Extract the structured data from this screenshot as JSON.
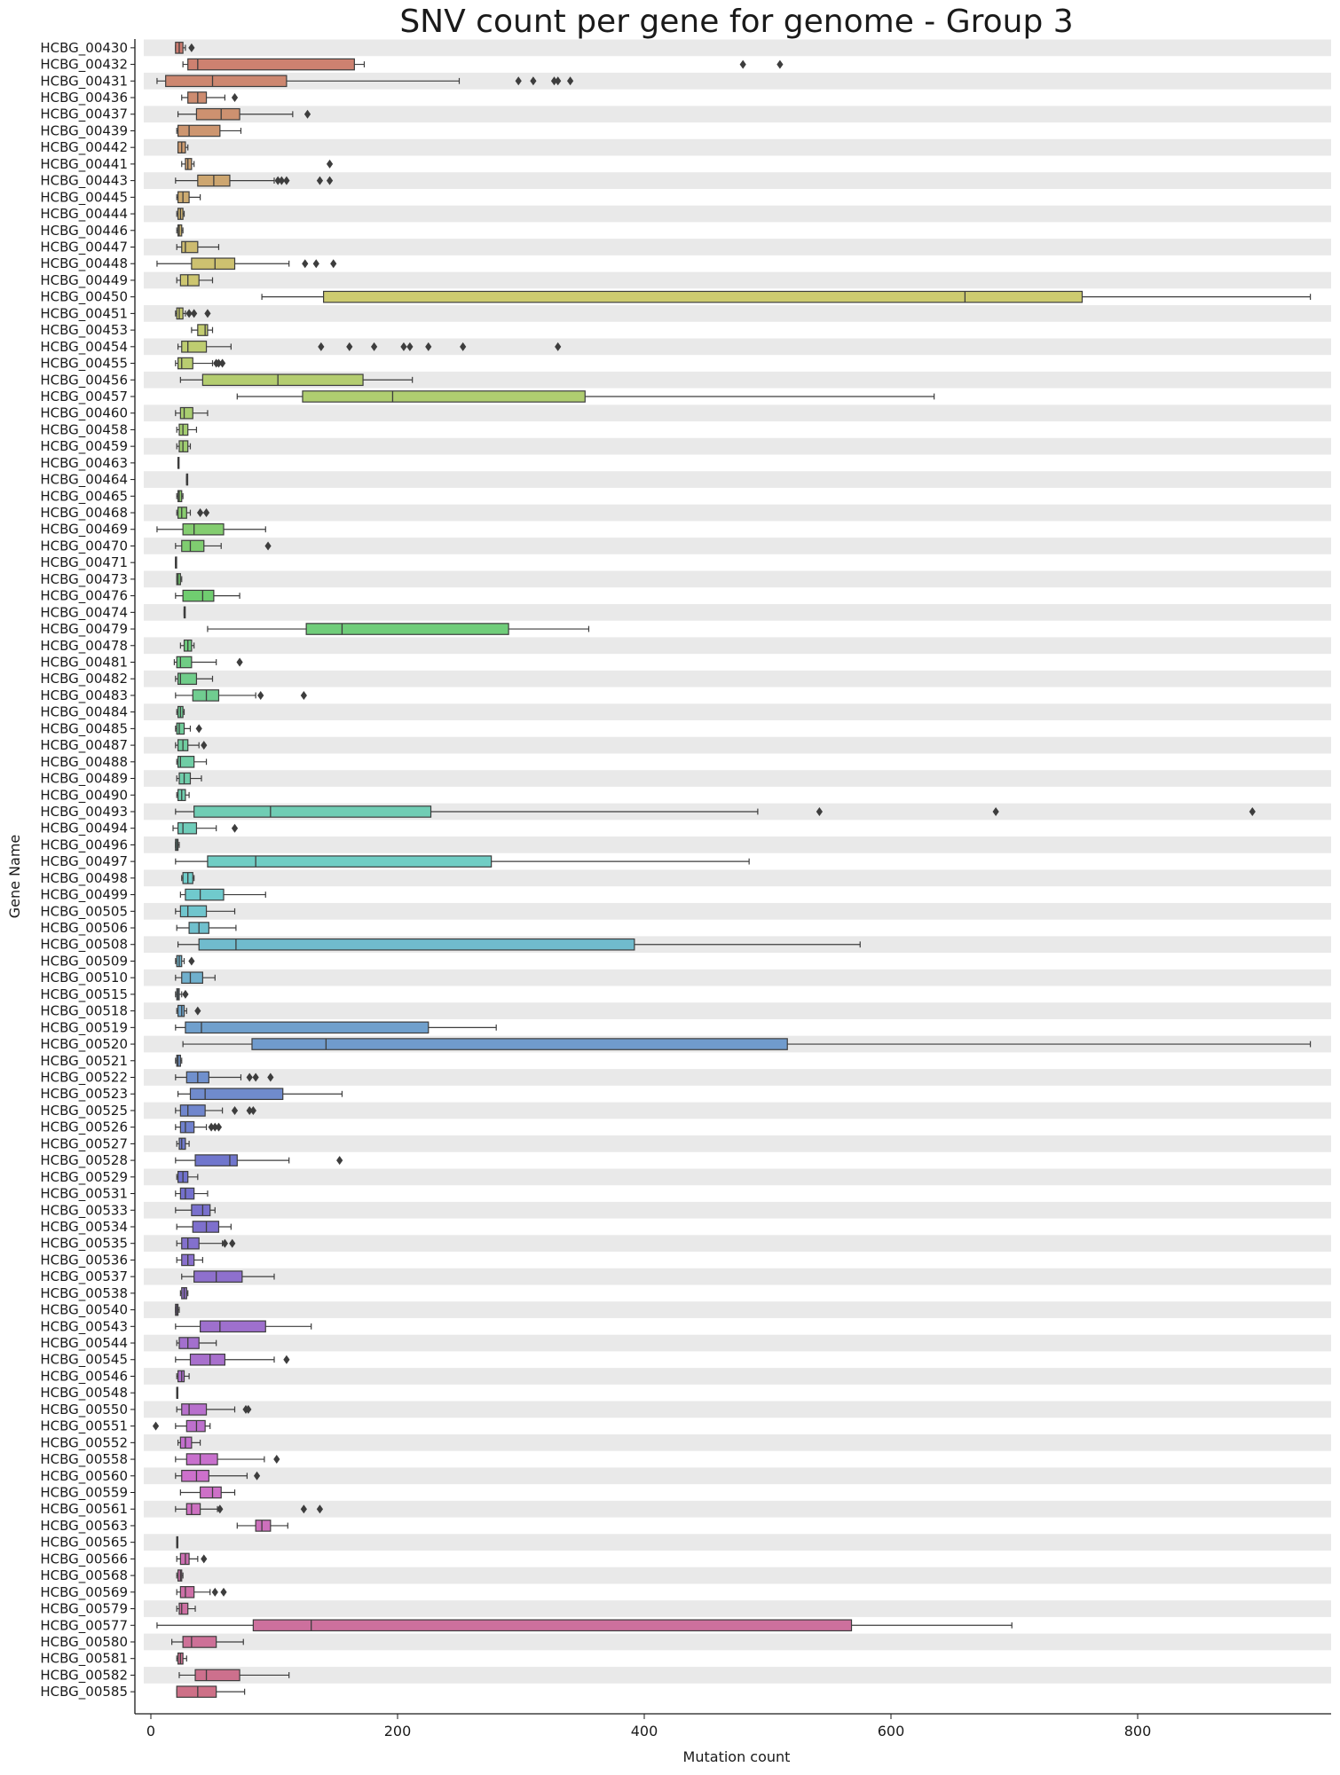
{
  "chart_data": {
    "type": "boxplot",
    "orientation": "horizontal",
    "title": "SNV count per gene for genome - Group 3",
    "xlabel": "Mutation count",
    "ylabel": "Gene Name",
    "xlim": [
      -5,
      950
    ],
    "xticks": [
      0,
      200,
      400,
      600,
      800
    ],
    "row_shading": "alternating light gray bands",
    "legend": "none",
    "genes": [
      {
        "name": "HCBG_00430",
        "min": 20,
        "q1": 20,
        "median": 23,
        "q3": 26,
        "max": 28,
        "outliers": [
          33
        ]
      },
      {
        "name": "HCBG_00432",
        "min": 26,
        "q1": 30,
        "median": 38,
        "q3": 165,
        "max": 173,
        "outliers": [
          480,
          510
        ]
      },
      {
        "name": "HCBG_00431",
        "min": 5,
        "q1": 12,
        "median": 50,
        "q3": 110,
        "max": 250,
        "outliers": [
          298,
          310,
          327,
          330,
          340
        ]
      },
      {
        "name": "HCBG_00436",
        "min": 25,
        "q1": 30,
        "median": 38,
        "q3": 45,
        "max": 60,
        "outliers": [
          68
        ]
      },
      {
        "name": "HCBG_00437",
        "min": 22,
        "q1": 37,
        "median": 57,
        "q3": 72,
        "max": 115,
        "outliers": [
          127
        ]
      },
      {
        "name": "HCBG_00439",
        "min": 21,
        "q1": 22,
        "median": 31,
        "q3": 56,
        "max": 73,
        "outliers": []
      },
      {
        "name": "HCBG_00442",
        "min": 22,
        "q1": 22,
        "median": 25,
        "q3": 28,
        "max": 30,
        "outliers": []
      },
      {
        "name": "HCBG_00441",
        "min": 25,
        "q1": 28,
        "median": 30,
        "q3": 33,
        "max": 35,
        "outliers": [
          145
        ]
      },
      {
        "name": "HCBG_00443",
        "min": 20,
        "q1": 38,
        "median": 51,
        "q3": 64,
        "max": 100,
        "outliers": [
          103,
          106,
          110,
          137,
          145
        ]
      },
      {
        "name": "HCBG_00445",
        "min": 21,
        "q1": 22,
        "median": 26,
        "q3": 31,
        "max": 40,
        "outliers": []
      },
      {
        "name": "HCBG_00444",
        "min": 21,
        "q1": 22,
        "median": 24,
        "q3": 26,
        "max": 27,
        "outliers": []
      },
      {
        "name": "HCBG_00446",
        "min": 21,
        "q1": 22,
        "median": 23,
        "q3": 25,
        "max": 26,
        "outliers": []
      },
      {
        "name": "HCBG_00447",
        "min": 21,
        "q1": 25,
        "median": 28,
        "q3": 38,
        "max": 55,
        "outliers": []
      },
      {
        "name": "HCBG_00448",
        "min": 5,
        "q1": 33,
        "median": 52,
        "q3": 68,
        "max": 112,
        "outliers": [
          125,
          134,
          148
        ]
      },
      {
        "name": "HCBG_00449",
        "min": 21,
        "q1": 24,
        "median": 30,
        "q3": 39,
        "max": 50,
        "outliers": []
      },
      {
        "name": "HCBG_00450",
        "min": 90,
        "q1": 140,
        "median": 660,
        "q3": 755,
        "max": 940,
        "outliers": []
      },
      {
        "name": "HCBG_00451",
        "min": 20,
        "q1": 21,
        "median": 23,
        "q3": 26,
        "max": 28,
        "outliers": [
          31,
          35,
          46
        ]
      },
      {
        "name": "HCBG_00453",
        "min": 33,
        "q1": 38,
        "median": 44,
        "q3": 46,
        "max": 50,
        "outliers": []
      },
      {
        "name": "HCBG_00454",
        "min": 22,
        "q1": 25,
        "median": 30,
        "q3": 45,
        "max": 65,
        "outliers": [
          138,
          161,
          181,
          205,
          210,
          225,
          253,
          330
        ]
      },
      {
        "name": "HCBG_00455",
        "min": 20,
        "q1": 22,
        "median": 25,
        "q3": 34,
        "max": 50,
        "outliers": [
          53,
          55,
          58
        ]
      },
      {
        "name": "HCBG_00456",
        "min": 24,
        "q1": 42,
        "median": 103,
        "q3": 172,
        "max": 212,
        "outliers": []
      },
      {
        "name": "HCBG_00457",
        "min": 70,
        "q1": 123,
        "median": 196,
        "q3": 352,
        "max": 635,
        "outliers": []
      },
      {
        "name": "HCBG_00460",
        "min": 20,
        "q1": 24,
        "median": 27,
        "q3": 34,
        "max": 46,
        "outliers": []
      },
      {
        "name": "HCBG_00458",
        "min": 21,
        "q1": 23,
        "median": 26,
        "q3": 30,
        "max": 37,
        "outliers": []
      },
      {
        "name": "HCBG_00459",
        "min": 21,
        "q1": 23,
        "median": 26,
        "q3": 30,
        "max": 32,
        "outliers": []
      },
      {
        "name": "HCBG_00463",
        "min": 22,
        "q1": 22,
        "median": 22,
        "q3": 22,
        "max": 22,
        "outliers": []
      },
      {
        "name": "HCBG_00464",
        "min": 29,
        "q1": 29,
        "median": 29,
        "q3": 29,
        "max": 29,
        "outliers": []
      },
      {
        "name": "HCBG_00465",
        "min": 21,
        "q1": 22,
        "median": 23,
        "q3": 25,
        "max": 26,
        "outliers": []
      },
      {
        "name": "HCBG_00468",
        "min": 21,
        "q1": 22,
        "median": 25,
        "q3": 29,
        "max": 32,
        "outliers": [
          40,
          45
        ]
      },
      {
        "name": "HCBG_00469",
        "min": 5,
        "q1": 26,
        "median": 35,
        "q3": 59,
        "max": 93,
        "outliers": []
      },
      {
        "name": "HCBG_00470",
        "min": 20,
        "q1": 25,
        "median": 32,
        "q3": 43,
        "max": 57,
        "outliers": [
          95
        ]
      },
      {
        "name": "HCBG_00471",
        "min": 20,
        "q1": 20,
        "median": 20,
        "q3": 20,
        "max": 20,
        "outliers": []
      },
      {
        "name": "HCBG_00473",
        "min": 21,
        "q1": 21,
        "median": 22,
        "q3": 24,
        "max": 25,
        "outliers": []
      },
      {
        "name": "HCBG_00476",
        "min": 20,
        "q1": 26,
        "median": 42,
        "q3": 51,
        "max": 72,
        "outliers": []
      },
      {
        "name": "HCBG_00474",
        "min": 27,
        "q1": 27,
        "median": 27,
        "q3": 27,
        "max": 27,
        "outliers": []
      },
      {
        "name": "HCBG_00479",
        "min": 46,
        "q1": 126,
        "median": 155,
        "q3": 290,
        "max": 355,
        "outliers": []
      },
      {
        "name": "HCBG_00478",
        "min": 24,
        "q1": 27,
        "median": 30,
        "q3": 33,
        "max": 35,
        "outliers": []
      },
      {
        "name": "HCBG_00481",
        "min": 19,
        "q1": 21,
        "median": 24,
        "q3": 33,
        "max": 53,
        "outliers": [
          72
        ]
      },
      {
        "name": "HCBG_00482",
        "min": 20,
        "q1": 22,
        "median": 24,
        "q3": 37,
        "max": 50,
        "outliers": []
      },
      {
        "name": "HCBG_00483",
        "min": 20,
        "q1": 34,
        "median": 45,
        "q3": 55,
        "max": 85,
        "outliers": [
          89,
          124
        ]
      },
      {
        "name": "HCBG_00484",
        "min": 21,
        "q1": 22,
        "median": 24,
        "q3": 26,
        "max": 27,
        "outliers": []
      },
      {
        "name": "HCBG_00485",
        "min": 20,
        "q1": 21,
        "median": 23,
        "q3": 27,
        "max": 32,
        "outliers": [
          39
        ]
      },
      {
        "name": "HCBG_00487",
        "min": 20,
        "q1": 22,
        "median": 26,
        "q3": 30,
        "max": 39,
        "outliers": [
          43
        ]
      },
      {
        "name": "HCBG_00488",
        "min": 21,
        "q1": 22,
        "median": 24,
        "q3": 35,
        "max": 45,
        "outliers": []
      },
      {
        "name": "HCBG_00489",
        "min": 21,
        "q1": 23,
        "median": 27,
        "q3": 32,
        "max": 41,
        "outliers": []
      },
      {
        "name": "HCBG_00490",
        "min": 21,
        "q1": 22,
        "median": 25,
        "q3": 28,
        "max": 31,
        "outliers": []
      },
      {
        "name": "HCBG_00493",
        "min": 20,
        "q1": 35,
        "median": 97,
        "q3": 227,
        "max": 492,
        "outliers": [
          542,
          685,
          893
        ]
      },
      {
        "name": "HCBG_00494",
        "min": 18,
        "q1": 22,
        "median": 26,
        "q3": 37,
        "max": 53,
        "outliers": [
          68
        ]
      },
      {
        "name": "HCBG_00496",
        "min": 20,
        "q1": 20,
        "median": 21,
        "q3": 22,
        "max": 23,
        "outliers": []
      },
      {
        "name": "HCBG_00497",
        "min": 20,
        "q1": 46,
        "median": 85,
        "q3": 276,
        "max": 485,
        "outliers": []
      },
      {
        "name": "HCBG_00498",
        "min": 25,
        "q1": 26,
        "median": 30,
        "q3": 34,
        "max": 35,
        "outliers": []
      },
      {
        "name": "HCBG_00499",
        "min": 24,
        "q1": 28,
        "median": 40,
        "q3": 59,
        "max": 93,
        "outliers": []
      },
      {
        "name": "HCBG_00505",
        "min": 20,
        "q1": 24,
        "median": 30,
        "q3": 45,
        "max": 68,
        "outliers": []
      },
      {
        "name": "HCBG_00506",
        "min": 21,
        "q1": 31,
        "median": 39,
        "q3": 47,
        "max": 69,
        "outliers": []
      },
      {
        "name": "HCBG_00508",
        "min": 22,
        "q1": 39,
        "median": 69,
        "q3": 392,
        "max": 575,
        "outliers": []
      },
      {
        "name": "HCBG_00509",
        "min": 20,
        "q1": 21,
        "median": 23,
        "q3": 25,
        "max": 27,
        "outliers": [
          33
        ]
      },
      {
        "name": "HCBG_00510",
        "min": 20,
        "q1": 25,
        "median": 32,
        "q3": 42,
        "max": 52,
        "outliers": []
      },
      {
        "name": "HCBG_00515",
        "min": 20,
        "q1": 21,
        "median": 22,
        "q3": 23,
        "max": 25,
        "outliers": [
          28
        ]
      },
      {
        "name": "HCBG_00518",
        "min": 21,
        "q1": 22,
        "median": 25,
        "q3": 27,
        "max": 29,
        "outliers": [
          38
        ]
      },
      {
        "name": "HCBG_00519",
        "min": 20,
        "q1": 28,
        "median": 41,
        "q3": 225,
        "max": 280,
        "outliers": []
      },
      {
        "name": "HCBG_00520",
        "min": 26,
        "q1": 82,
        "median": 142,
        "q3": 516,
        "max": 940,
        "outliers": []
      },
      {
        "name": "HCBG_00521",
        "min": 20,
        "q1": 21,
        "median": 22,
        "q3": 24,
        "max": 25,
        "outliers": []
      },
      {
        "name": "HCBG_00522",
        "min": 20,
        "q1": 29,
        "median": 38,
        "q3": 47,
        "max": 73,
        "outliers": [
          80,
          85,
          97
        ]
      },
      {
        "name": "HCBG_00523",
        "min": 22,
        "q1": 32,
        "median": 44,
        "q3": 107,
        "max": 155,
        "outliers": []
      },
      {
        "name": "HCBG_00525",
        "min": 20,
        "q1": 24,
        "median": 30,
        "q3": 44,
        "max": 58,
        "outliers": [
          68,
          80,
          83
        ]
      },
      {
        "name": "HCBG_00526",
        "min": 20,
        "q1": 24,
        "median": 28,
        "q3": 35,
        "max": 45,
        "outliers": [
          49,
          52,
          55
        ]
      },
      {
        "name": "HCBG_00527",
        "min": 21,
        "q1": 23,
        "median": 25,
        "q3": 28,
        "max": 31,
        "outliers": []
      },
      {
        "name": "HCBG_00528",
        "min": 20,
        "q1": 36,
        "median": 64,
        "q3": 70,
        "max": 112,
        "outliers": [
          153
        ]
      },
      {
        "name": "HCBG_00529",
        "min": 21,
        "q1": 22,
        "median": 26,
        "q3": 30,
        "max": 38,
        "outliers": []
      },
      {
        "name": "HCBG_00531",
        "min": 20,
        "q1": 24,
        "median": 28,
        "q3": 35,
        "max": 46,
        "outliers": []
      },
      {
        "name": "HCBG_00533",
        "min": 20,
        "q1": 33,
        "median": 42,
        "q3": 48,
        "max": 52,
        "outliers": []
      },
      {
        "name": "HCBG_00534",
        "min": 21,
        "q1": 34,
        "median": 45,
        "q3": 55,
        "max": 65,
        "outliers": []
      },
      {
        "name": "HCBG_00535",
        "min": 21,
        "q1": 25,
        "median": 30,
        "q3": 39,
        "max": 58,
        "outliers": [
          60,
          66
        ]
      },
      {
        "name": "HCBG_00536",
        "min": 21,
        "q1": 25,
        "median": 30,
        "q3": 35,
        "max": 42,
        "outliers": []
      },
      {
        "name": "HCBG_00537",
        "min": 25,
        "q1": 35,
        "median": 53,
        "q3": 74,
        "max": 100,
        "outliers": []
      },
      {
        "name": "HCBG_00538",
        "min": 24,
        "q1": 25,
        "median": 27,
        "q3": 29,
        "max": 30,
        "outliers": []
      },
      {
        "name": "HCBG_00540",
        "min": 20,
        "q1": 20,
        "median": 21,
        "q3": 22,
        "max": 23,
        "outliers": []
      },
      {
        "name": "HCBG_00543",
        "min": 20,
        "q1": 40,
        "median": 56,
        "q3": 93,
        "max": 130,
        "outliers": []
      },
      {
        "name": "HCBG_00544",
        "min": 21,
        "q1": 23,
        "median": 30,
        "q3": 39,
        "max": 53,
        "outliers": []
      },
      {
        "name": "HCBG_00545",
        "min": 20,
        "q1": 32,
        "median": 48,
        "q3": 60,
        "max": 100,
        "outliers": [
          110
        ]
      },
      {
        "name": "HCBG_00546",
        "min": 21,
        "q1": 22,
        "median": 25,
        "q3": 27,
        "max": 31,
        "outliers": []
      },
      {
        "name": "HCBG_00548",
        "min": 21,
        "q1": 21,
        "median": 21,
        "q3": 21,
        "max": 21,
        "outliers": []
      },
      {
        "name": "HCBG_00550",
        "min": 21,
        "q1": 25,
        "median": 31,
        "q3": 45,
        "max": 68,
        "outliers": [
          77,
          79
        ]
      },
      {
        "name": "HCBG_00551",
        "min": 20,
        "q1": 29,
        "median": 37,
        "q3": 44,
        "max": 48,
        "outliers": [
          4
        ]
      },
      {
        "name": "HCBG_00552",
        "min": 22,
        "q1": 24,
        "median": 28,
        "q3": 33,
        "max": 40,
        "outliers": []
      },
      {
        "name": "HCBG_00558",
        "min": 20,
        "q1": 29,
        "median": 40,
        "q3": 54,
        "max": 92,
        "outliers": [
          102
        ]
      },
      {
        "name": "HCBG_00560",
        "min": 20,
        "q1": 25,
        "median": 37,
        "q3": 47,
        "max": 78,
        "outliers": [
          86
        ]
      },
      {
        "name": "HCBG_00559",
        "min": 24,
        "q1": 40,
        "median": 50,
        "q3": 57,
        "max": 68,
        "outliers": []
      },
      {
        "name": "HCBG_00561",
        "min": 20,
        "q1": 29,
        "median": 33,
        "q3": 40,
        "max": 54,
        "outliers": [
          56,
          124,
          137
        ]
      },
      {
        "name": "HCBG_00563",
        "min": 70,
        "q1": 85,
        "median": 90,
        "q3": 97,
        "max": 111,
        "outliers": []
      },
      {
        "name": "HCBG_00565",
        "min": 21,
        "q1": 21,
        "median": 21,
        "q3": 21,
        "max": 21,
        "outliers": []
      },
      {
        "name": "HCBG_00566",
        "min": 21,
        "q1": 24,
        "median": 28,
        "q3": 31,
        "max": 38,
        "outliers": [
          43
        ]
      },
      {
        "name": "HCBG_00568",
        "min": 21,
        "q1": 22,
        "median": 24,
        "q3": 25,
        "max": 26,
        "outliers": []
      },
      {
        "name": "HCBG_00569",
        "min": 21,
        "q1": 24,
        "median": 28,
        "q3": 35,
        "max": 48,
        "outliers": [
          52,
          59
        ]
      },
      {
        "name": "HCBG_00579",
        "min": 21,
        "q1": 23,
        "median": 25,
        "q3": 30,
        "max": 36,
        "outliers": []
      },
      {
        "name": "HCBG_00577",
        "min": 5,
        "q1": 83,
        "median": 130,
        "q3": 568,
        "max": 698,
        "outliers": []
      },
      {
        "name": "HCBG_00580",
        "min": 17,
        "q1": 26,
        "median": 33,
        "q3": 53,
        "max": 75,
        "outliers": []
      },
      {
        "name": "HCBG_00581",
        "min": 21,
        "q1": 22,
        "median": 24,
        "q3": 26,
        "max": 29,
        "outliers": []
      },
      {
        "name": "HCBG_00582",
        "min": 23,
        "q1": 36,
        "median": 45,
        "q3": 72,
        "max": 112,
        "outliers": []
      },
      {
        "name": "HCBG_00585",
        "min": 21,
        "q1": 21,
        "median": 38,
        "q3": 53,
        "max": 76,
        "outliers": []
      }
    ]
  }
}
